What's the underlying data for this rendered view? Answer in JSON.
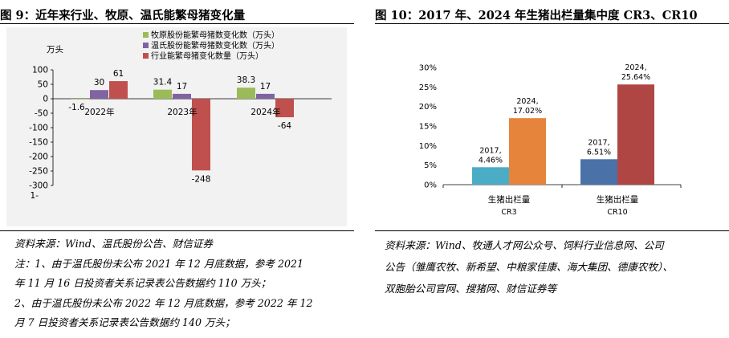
{
  "left": {
    "title": "图 9：近年来行业、牧原、温氏能繁母猪变化量",
    "source": "资料来源：Wind、温氏股份公告、财信证券",
    "notes": [
      "注：1、由于温氏股份未公布 2021 年 12 月底数据，参考 2021",
      "年 11 月 16 日投资者关系记录表公告数据约 110 万头；",
      "2、由于温氏股份未公布 2022 年 12 月底数据，参考 2022 年 12",
      "月 7 日投资者关系记录表公告数据约 140 万头；"
    ]
  },
  "right": {
    "title": "图 10：2017 年、2024 年生猪出栏量集中度 CR3、CR10",
    "source": [
      "资料来源：Wind、牧通人才网公众号、饲料行业信息网、公司",
      "公告（雏鹰农牧、新希望、中粮家佳康、海大集团、德康农牧）、",
      "双胞胎公司官网、搜猪网、财信证券等"
    ]
  },
  "colors": {
    "muyuan": "#9bbb59",
    "wens": "#8064a2",
    "industry": "#c0504d",
    "cr_teal": "#4bacc6",
    "cr_orange": "#e6843c",
    "cr_blue": "#4a72a8",
    "cr_red": "#b04644"
  },
  "chart_data": [
    {
      "type": "bar",
      "unit_label": "万头",
      "categories": [
        "2022年",
        "2023年",
        "2024年"
      ],
      "series": [
        {
          "name": "牧原股份能繁母猪数变化数（万头）",
          "values": [
            -1.6,
            31.4,
            38.3
          ],
          "labels": [
            "-1.6",
            "31.4",
            "38.3"
          ]
        },
        {
          "name": "温氏股份能繁母猪数变化数（万头）",
          "values": [
            30,
            17,
            17
          ],
          "labels": [
            "30",
            "17",
            "17"
          ]
        },
        {
          "name": "行业能繁母猪变化数量（万头）",
          "values": [
            61,
            -248,
            -64
          ],
          "labels": [
            "61",
            "-248",
            "-64"
          ]
        }
      ],
      "ylim": [
        -300,
        100
      ],
      "yticks": [
        "100",
        "50",
        "0",
        "-50",
        "-100",
        "-150",
        "-200",
        "-250",
        "-300"
      ],
      "extra_tick": "1-",
      "legend": "top-right"
    },
    {
      "type": "bar",
      "categories": [
        "生猪出栏量 CR3",
        "生猪出栏量 CR10"
      ],
      "category_lines": [
        [
          "生猪出栏量",
          "CR3"
        ],
        [
          "生猪出栏量",
          "CR10"
        ]
      ],
      "series": [
        {
          "name": "2017",
          "values": [
            4.46,
            6.51
          ],
          "labels": [
            [
              "2017,",
              "4.46%"
            ],
            [
              "2017,",
              "6.51%"
            ]
          ]
        },
        {
          "name": "2024",
          "values": [
            17.02,
            25.64
          ],
          "labels": [
            [
              "2024,",
              "17.02%"
            ],
            [
              "2024,",
              "25.64%"
            ]
          ]
        }
      ],
      "ylim": [
        0,
        30
      ],
      "yticks": [
        "30%",
        "25%",
        "20%",
        "15%",
        "10%",
        "5%",
        "0%"
      ]
    }
  ]
}
